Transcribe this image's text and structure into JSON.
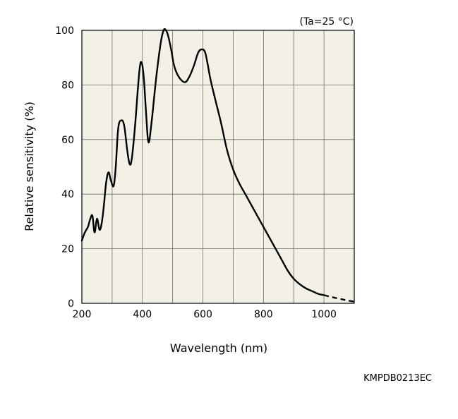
{
  "chart_data": {
    "type": "line",
    "condition_note": "(Ta=25 °C)",
    "xlabel": "Wavelength (nm)",
    "ylabel": "Relative sensitivity (%)",
    "xlim": [
      200,
      1100
    ],
    "ylim": [
      0,
      100
    ],
    "xticks": [
      200,
      400,
      600,
      800,
      1000
    ],
    "yticks": [
      0,
      20,
      40,
      60,
      80,
      100
    ],
    "x_grid_step": 100,
    "y_grid_step": 20,
    "grid": true,
    "plot_background": "#f3f1e7",
    "line_color": "#000000",
    "series": [
      {
        "style": "solid",
        "x": [
          200,
          210,
          220,
          228,
          235,
          242,
          250,
          258,
          265,
          272,
          280,
          288,
          296,
          305,
          312,
          320,
          330,
          340,
          350,
          358,
          365,
          375,
          390,
          398,
          405,
          412,
          420,
          430,
          445,
          460,
          470,
          478,
          485,
          495,
          505,
          520,
          540,
          555,
          570,
          585,
          598,
          607,
          615,
          625,
          640,
          660,
          680,
          700,
          720,
          740,
          760,
          780,
          800,
          820,
          840,
          860,
          880,
          900,
          920,
          940,
          960,
          980,
          1000
        ],
        "y": [
          23,
          26,
          28,
          31,
          32,
          26,
          31,
          27,
          29,
          35,
          44,
          48,
          45,
          43,
          50,
          64,
          67,
          65,
          56,
          51,
          53,
          64,
          85,
          88,
          82,
          70,
          59,
          66,
          82,
          95,
          100,
          100,
          98,
          93,
          87,
          83,
          81,
          83,
          87,
          92,
          93,
          92,
          88,
          82,
          75,
          66,
          56,
          49,
          44,
          40,
          36,
          32,
          28,
          24,
          20,
          16,
          12,
          9,
          7,
          5.5,
          4.5,
          3.5,
          3
        ]
      },
      {
        "style": "dashed",
        "x": [
          1000,
          1025,
          1050,
          1075,
          1100
        ],
        "y": [
          3,
          2.3,
          1.7,
          1.1,
          0.6
        ]
      }
    ]
  },
  "figure_code": "KMPDB0213EC"
}
